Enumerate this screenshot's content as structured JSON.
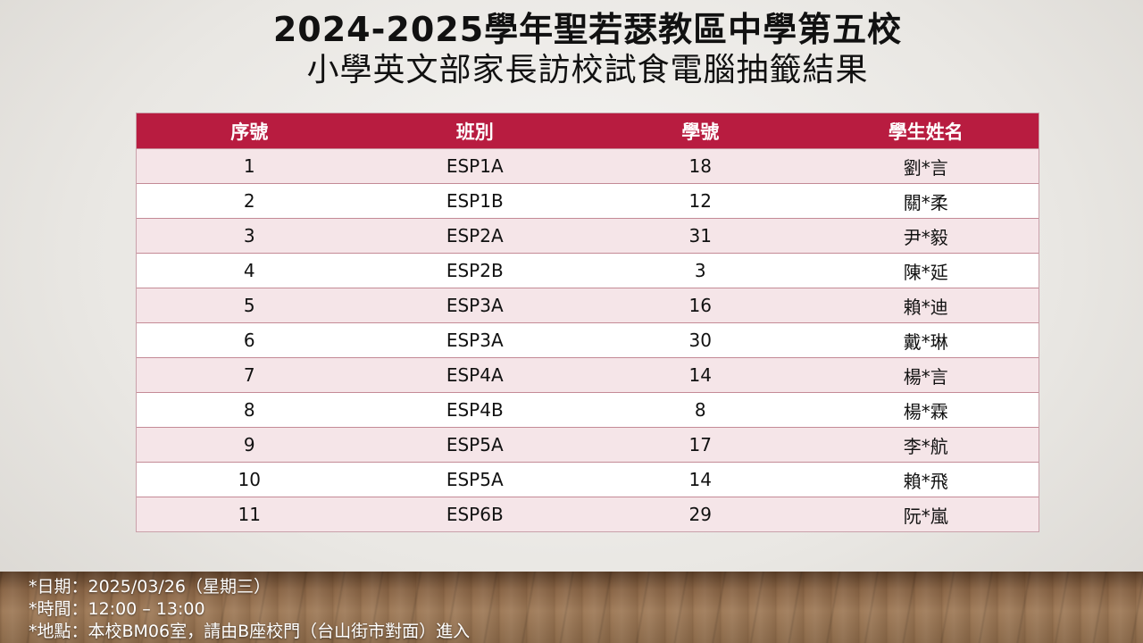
{
  "title": {
    "line1": "2024-2025學年聖若瑟教區中學第五校",
    "line2": "小學英文部家長訪校試食電腦抽籤結果"
  },
  "table": {
    "headers": [
      "序號",
      "班別",
      "學號",
      "學生姓名"
    ],
    "rows": [
      [
        "1",
        "ESP1A",
        "18",
        "劉*言"
      ],
      [
        "2",
        "ESP1B",
        "12",
        "關*柔"
      ],
      [
        "3",
        "ESP2A",
        "31",
        "尹*毅"
      ],
      [
        "4",
        "ESP2B",
        "3",
        "陳*延"
      ],
      [
        "5",
        "ESP3A",
        "16",
        "賴*迪"
      ],
      [
        "6",
        "ESP3A",
        "30",
        "戴*琳"
      ],
      [
        "7",
        "ESP4A",
        "14",
        "楊*言"
      ],
      [
        "8",
        "ESP4B",
        "8",
        "楊*霖"
      ],
      [
        "9",
        "ESP5A",
        "17",
        "李*航"
      ],
      [
        "10",
        "ESP5A",
        "14",
        "賴*飛"
      ],
      [
        "11",
        "ESP6B",
        "29",
        "阮*嵐"
      ]
    ]
  },
  "info": {
    "date": "*日期：2025/03/26（星期三）",
    "time": "*時間：12:00 – 13:00",
    "location": "*地點：本校BM06室，請由B座校門（台山街市對面）進入"
  },
  "colors": {
    "header_bg": "#b81c40",
    "row_odd_bg": "#f5e5e8",
    "row_even_bg": "#ffffff"
  }
}
